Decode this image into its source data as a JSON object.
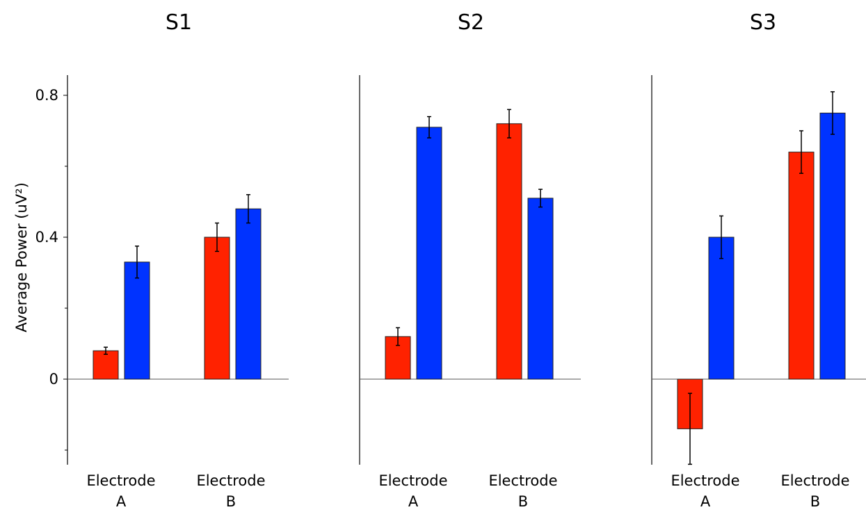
{
  "chart_data": {
    "type": "bar",
    "ylabel": "Average Power (uV²)",
    "ylim": [
      -0.2,
      0.8
    ],
    "yticks": [
      {
        "value": 0.8,
        "label": "0.8"
      },
      {
        "value": 0.4,
        "label": "0.4"
      },
      {
        "value": 0,
        "label": "0"
      }
    ],
    "minor_yticks": [
      0.6,
      0.2,
      -0.2
    ],
    "colors": {
      "red": "#ff2200",
      "blue": "#0033ff"
    },
    "panels": [
      {
        "title": "S1",
        "categories": [
          {
            "line1": "Electrode",
            "line2": "A"
          },
          {
            "line1": "Electrode",
            "line2": "B"
          }
        ],
        "bars": [
          {
            "value": 0.08,
            "err": 0.01
          },
          {
            "value": 0.33,
            "err": 0.045
          },
          {
            "value": 0.4,
            "err": 0.04
          },
          {
            "value": 0.48,
            "err": 0.04
          }
        ]
      },
      {
        "title": "S2",
        "categories": [
          {
            "line1": "Electrode",
            "line2": "A"
          },
          {
            "line1": "Electrode",
            "line2": "B"
          }
        ],
        "bars": [
          {
            "value": 0.12,
            "err": 0.025
          },
          {
            "value": 0.71,
            "err": 0.03
          },
          {
            "value": 0.72,
            "err": 0.04
          },
          {
            "value": 0.51,
            "err": 0.025
          }
        ]
      },
      {
        "title": "S3",
        "categories": [
          {
            "line1": "Electrode",
            "line2": "A"
          },
          {
            "line1": "Electrode",
            "line2": "B"
          }
        ],
        "bars": [
          {
            "value": -0.14,
            "err": 0.1
          },
          {
            "value": 0.4,
            "err": 0.06
          },
          {
            "value": 0.64,
            "err": 0.06
          },
          {
            "value": 0.75,
            "err": 0.06
          }
        ]
      }
    ]
  }
}
